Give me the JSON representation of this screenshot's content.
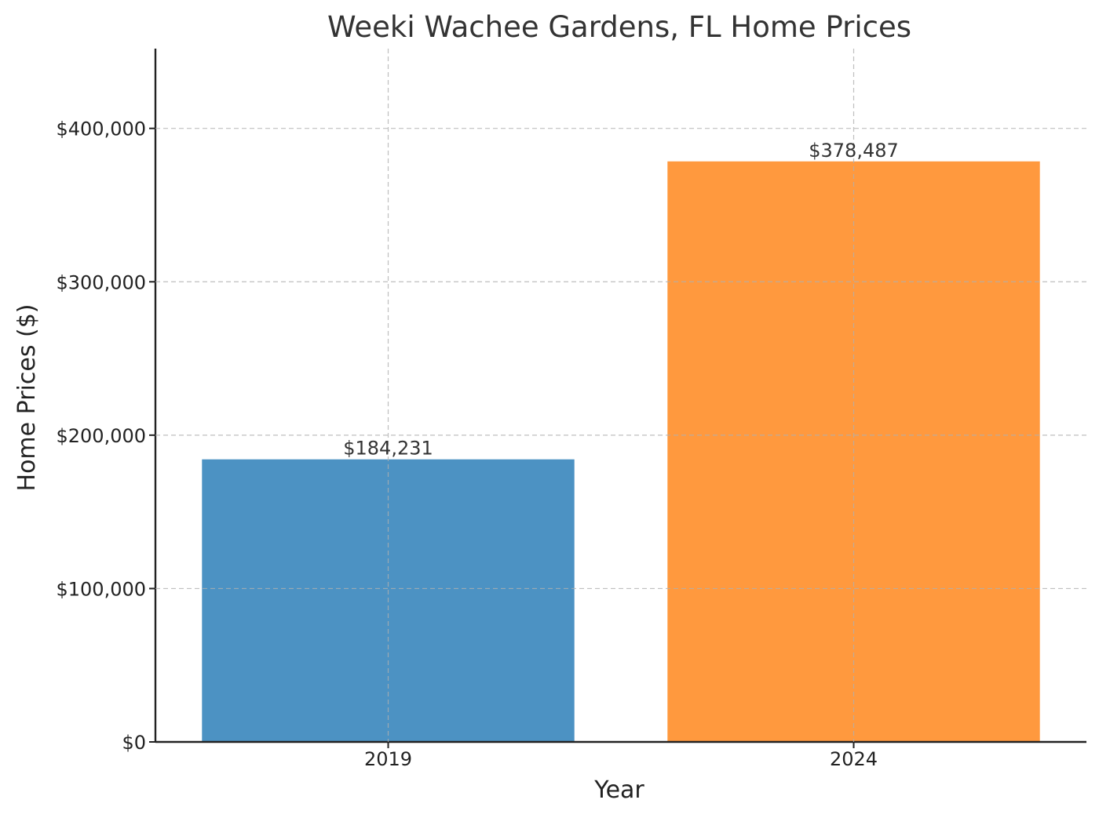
{
  "chart_data": {
    "type": "bar",
    "title": "Weeki Wachee Gardens, FL Home Prices",
    "xlabel": "Year",
    "ylabel": "Home Prices ($)",
    "categories": [
      "2019",
      "2024"
    ],
    "values": [
      184231,
      378487
    ],
    "value_labels": [
      "$184,231",
      "$378,487"
    ],
    "colors": [
      "#4c92c3",
      "#ff993e"
    ],
    "ylim": [
      0,
      452000
    ],
    "yticks": [
      0,
      100000,
      200000,
      300000,
      400000
    ],
    "ytick_labels": [
      "$0",
      "$100,000",
      "$200,000",
      "$300,000",
      "$400,000"
    ],
    "grid": true,
    "legend": "none"
  }
}
